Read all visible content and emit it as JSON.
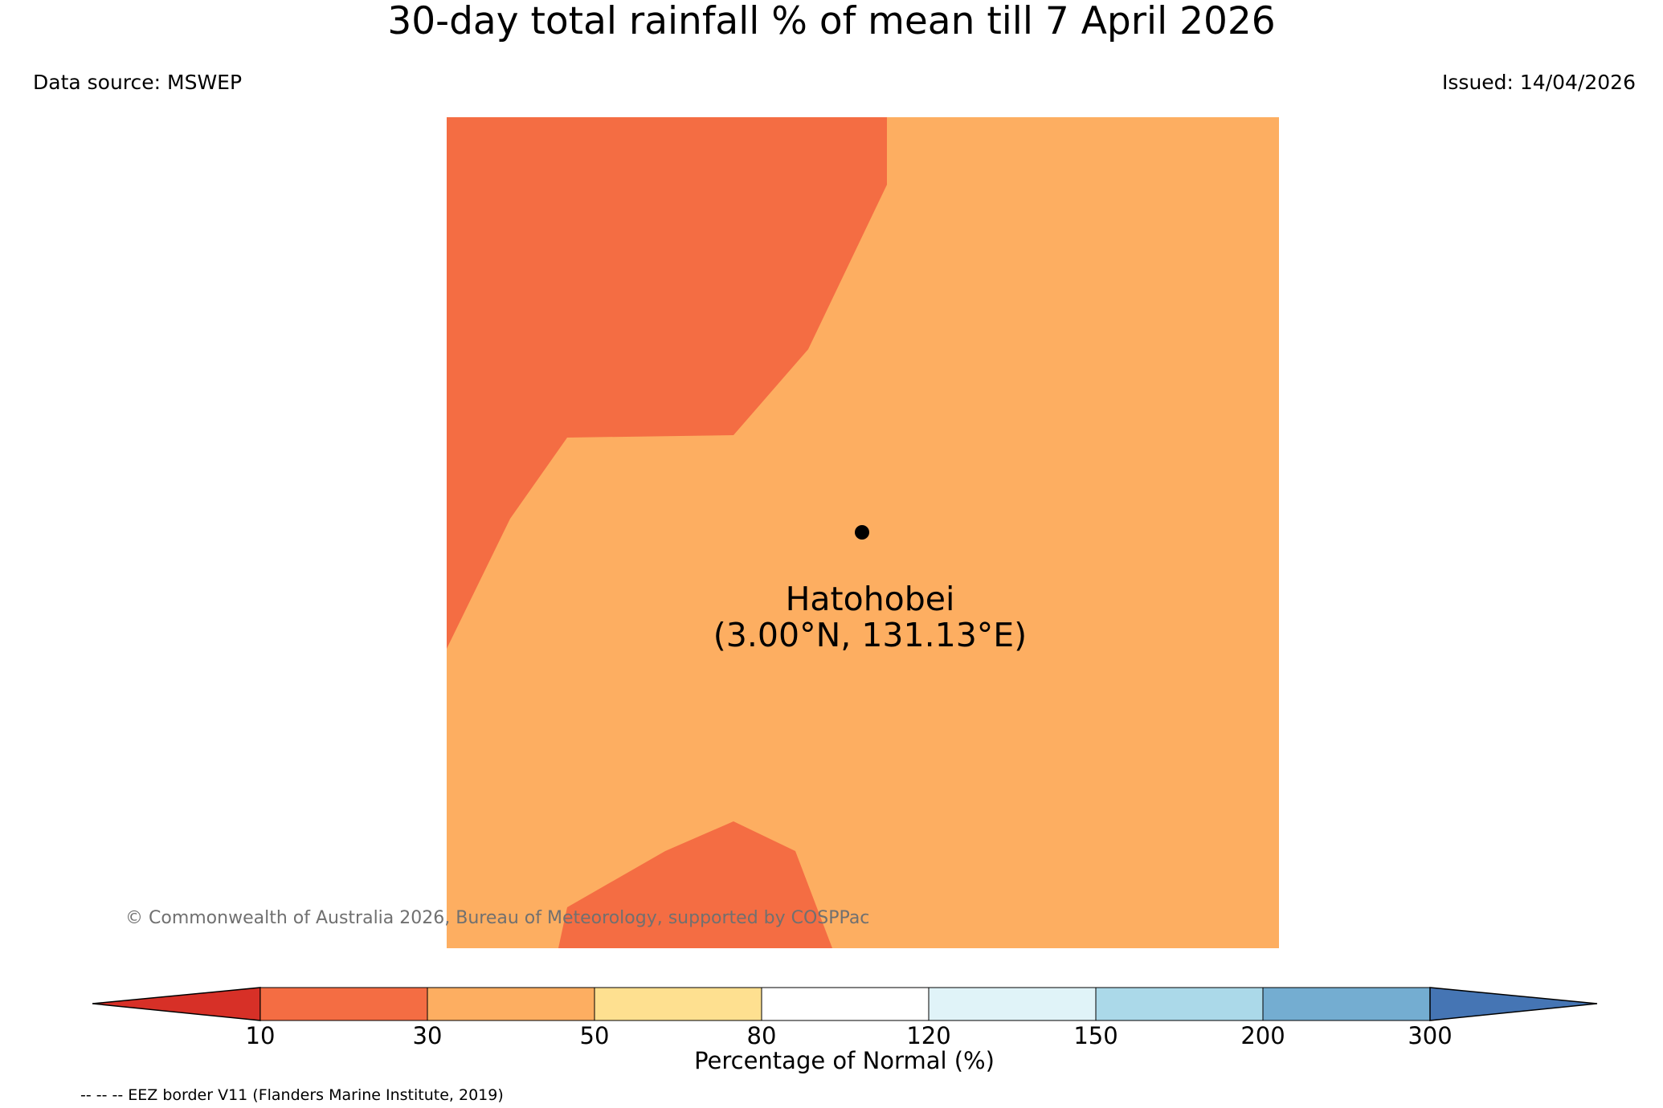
{
  "title": "30-day total rainfall % of mean till 7 April 2026",
  "data_source": "Data source: MSWEP",
  "issued": "Issued: 14/04/2026",
  "location": {
    "name": "Hatohobei",
    "coords": "(3.00°N, 131.13°E)"
  },
  "copyright": "© Commonwealth of Australia 2026, Bureau of Meteorology, supported by COSPPac",
  "eez_note": "-- -- -- EEZ border V11 (Flanders Marine Institute, 2019)",
  "colorbar": {
    "label": "Percentage of Normal (%)",
    "ticks": [
      "10",
      "30",
      "50",
      "80",
      "120",
      "150",
      "200",
      "300"
    ],
    "under_color": "#d73027",
    "over_color": "#4575b4",
    "bins": [
      "#f46d43",
      "#fdae61",
      "#fee090",
      "#ffffff",
      "#e0f3f8",
      "#abd9e9",
      "#74add1"
    ]
  },
  "map_colors": {
    "class_10_30": "#f46d43",
    "class_30_50": "#fdae61"
  }
}
